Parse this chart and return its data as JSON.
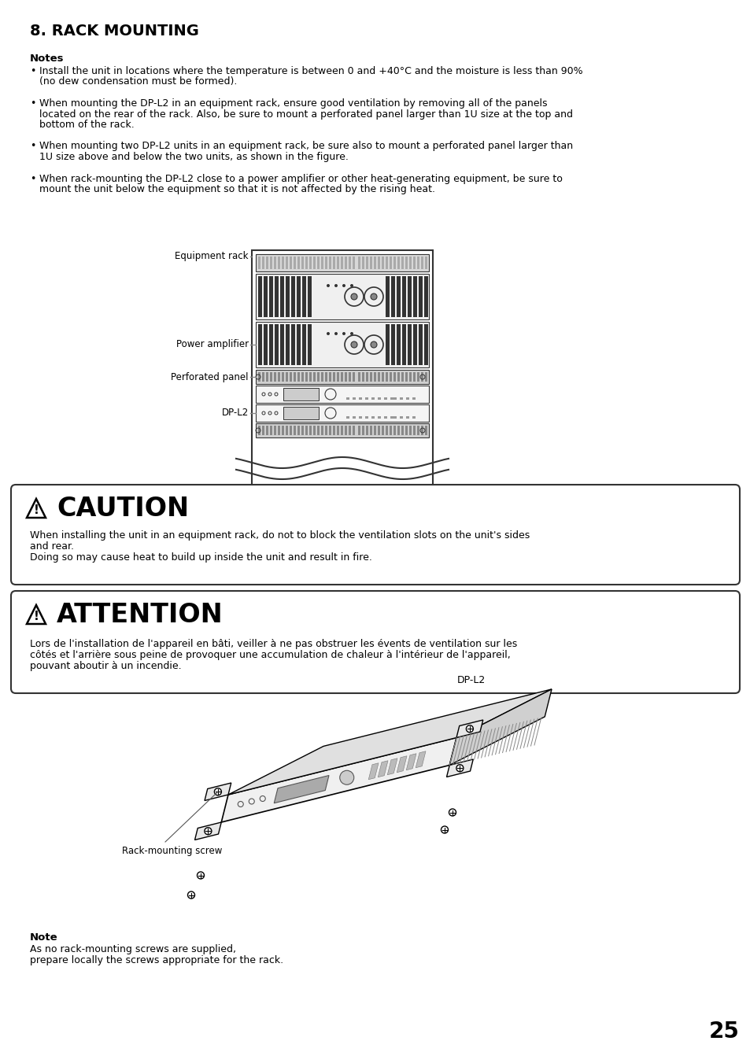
{
  "title": "8. RACK MOUNTING",
  "bg_color": "#ffffff",
  "text_color": "#000000",
  "page_number": "25",
  "notes_header": "Notes",
  "note1_line1": "Install the unit in locations where the temperature is between 0 and +40°C and the moisture is less than 90%",
  "note1_line2": "(no dew condensation must be formed).",
  "note2_line1": "When mounting the DP-L2 in an equipment rack, ensure good ventilation by removing all of the panels",
  "note2_line2": "located on the rear of the rack. Also, be sure to mount a perforated panel larger than 1U size at the top and",
  "note2_line3": "bottom of the rack.",
  "note3_line1": "When mounting two DP-L2 units in an equipment rack, be sure also to mount a perforated panel larger than",
  "note3_line2": "1U size above and below the two units, as shown in the figure.",
  "note4_line1": "When rack-mounting the DP-L2 close to a power amplifier or other heat-generating equipment, be sure to",
  "note4_line2": "mount the unit below the equipment so that it is not affected by the rising heat.",
  "caution_title": "CAUTION",
  "caution_line1": "When installing the unit in an equipment rack, do not to block the ventilation slots on the unit's sides",
  "caution_line2": "and rear.",
  "caution_line3": "Doing so may cause heat to build up inside the unit and result in fire.",
  "attention_title": "ATTENTION",
  "attention_line1": "Lors de l'installation de l'appareil en bâti, veiller à ne pas obstruer les évents de ventilation sur les",
  "attention_line2": "côtés et l'arrière sous peine de provoquer une accumulation de chaleur à l'intérieur de l'appareil,",
  "attention_line3": "pouvant aboutir à un incendie.",
  "label_eq_rack": "Equipment rack",
  "label_power_amp": "Power amplifier",
  "label_perf_panel": "Perforated panel",
  "label_dpl2": "DP-L2",
  "note_header": "Note",
  "note_line1": "As no rack-mounting screws are supplied,",
  "note_line2": "prepare locally the screws appropriate for the rack.",
  "screw_label": "Rack-mounting screw",
  "dp_l2_label": "DP-L2"
}
